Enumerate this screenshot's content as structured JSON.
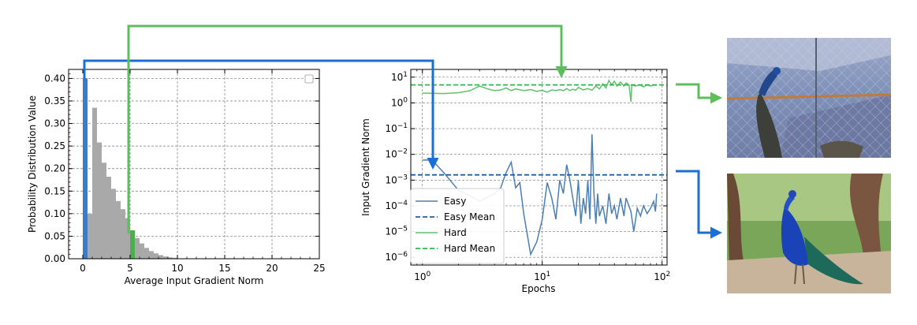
{
  "colors": {
    "easy": "#4a7fb5",
    "easy_mean": "#1f5fa8",
    "hard": "#5ec26a",
    "hard_mean": "#2eb84a",
    "hist_gray": "#a9a9a9",
    "hist_blue": "#3d7bc4",
    "hist_green": "#4cae4c",
    "arrow_blue": "#1a6fd6",
    "arrow_green": "#5cbf5c"
  },
  "chart_data": [
    {
      "type": "bar",
      "title": "",
      "xlabel": "Average Input Gradient Norm",
      "ylabel": "Probability Distribution Value",
      "xlim": [
        -1.5,
        25
      ],
      "ylim": [
        0,
        0.42
      ],
      "xticks": [
        "0",
        "5",
        "10",
        "15",
        "20",
        "25"
      ],
      "yticks": [
        "0.00",
        "0.05",
        "0.10",
        "0.15",
        "0.20",
        "0.25",
        "0.30",
        "0.35",
        "0.40"
      ],
      "grid": true,
      "bin_width": 0.5,
      "bins": [
        {
          "x": 0.0,
          "value": 0.4,
          "highlight": "easy"
        },
        {
          "x": 0.5,
          "value": 0.1
        },
        {
          "x": 1.0,
          "value": 0.335
        },
        {
          "x": 1.5,
          "value": 0.258
        },
        {
          "x": 2.0,
          "value": 0.213
        },
        {
          "x": 2.5,
          "value": 0.182
        },
        {
          "x": 3.0,
          "value": 0.155
        },
        {
          "x": 3.5,
          "value": 0.128
        },
        {
          "x": 4.0,
          "value": 0.11
        },
        {
          "x": 4.5,
          "value": 0.09
        },
        {
          "x": 5.0,
          "value": 0.063,
          "highlight": "hard"
        },
        {
          "x": 5.5,
          "value": 0.046
        },
        {
          "x": 6.0,
          "value": 0.034
        },
        {
          "x": 6.5,
          "value": 0.024
        },
        {
          "x": 7.0,
          "value": 0.017
        },
        {
          "x": 7.5,
          "value": 0.012
        },
        {
          "x": 8.0,
          "value": 0.008
        },
        {
          "x": 8.5,
          "value": 0.005
        },
        {
          "x": 9.0,
          "value": 0.003
        },
        {
          "x": 9.5,
          "value": 0.002
        }
      ]
    },
    {
      "type": "line",
      "title": "",
      "xlabel": "Epochs",
      "ylabel": "Input Gradient Norm",
      "xscale": "log",
      "yscale": "log",
      "xlim": [
        0.8,
        110
      ],
      "ylim": [
        5e-07,
        20
      ],
      "xticks": [
        {
          "v": 1,
          "base": "10",
          "exp": "0"
        },
        {
          "v": 10,
          "base": "10",
          "exp": "1"
        },
        {
          "v": 100,
          "base": "10",
          "exp": "2"
        }
      ],
      "yticks": [
        {
          "v": 1e-06,
          "base": "10",
          "exp": "−6"
        },
        {
          "v": 1e-05,
          "base": "10",
          "exp": "−5"
        },
        {
          "v": 0.0001,
          "base": "10",
          "exp": "−4"
        },
        {
          "v": 0.001,
          "base": "10",
          "exp": "−3"
        },
        {
          "v": 0.01,
          "base": "10",
          "exp": "−2"
        },
        {
          "v": 0.1,
          "base": "10",
          "exp": "−1"
        },
        {
          "v": 1,
          "base": "10",
          "exp": "0"
        },
        {
          "v": 10,
          "base": "10",
          "exp": "1"
        }
      ],
      "grid": true,
      "legend_position": "lower-left",
      "series": [
        {
          "name": "Easy",
          "style": "solid",
          "points": [
            [
              1,
              0.006
            ],
            [
              1.2,
              0.006
            ],
            [
              1.5,
              0.002
            ],
            [
              2,
              0.0004
            ],
            [
              2.5,
              0.00025
            ],
            [
              3,
              0.00015
            ],
            [
              4,
              0.0003
            ],
            [
              4.5,
              0.0005
            ],
            [
              5,
              0.002
            ],
            [
              5.5,
              0.005
            ],
            [
              6,
              0.0005
            ],
            [
              6.5,
              0.0008
            ],
            [
              7,
              5e-05
            ],
            [
              8,
              1.3e-06
            ],
            [
              9,
              4e-06
            ],
            [
              10,
              3e-05
            ],
            [
              11,
              0.0008
            ],
            [
              12,
              0.0002
            ],
            [
              13,
              3e-05
            ],
            [
              14,
              0.001
            ],
            [
              15,
              0.0003
            ],
            [
              16,
              0.004
            ],
            [
              17,
              0.001
            ],
            [
              18,
              0.0002
            ],
            [
              19,
              4e-05
            ],
            [
              20,
              0.001
            ],
            [
              21,
              2e-05
            ],
            [
              22,
              0.0002
            ],
            [
              23,
              5e-05
            ],
            [
              24,
              0.001
            ],
            [
              25,
              3e-05
            ],
            [
              26,
              0.06
            ],
            [
              27,
              0.0003
            ],
            [
              28,
              2e-05
            ],
            [
              29,
              0.0003
            ],
            [
              30,
              4e-05
            ],
            [
              32,
              0.0001
            ],
            [
              34,
              2e-05
            ],
            [
              36,
              0.0003
            ],
            [
              38,
              5e-05
            ],
            [
              40,
              0.0001
            ],
            [
              42,
              3e-05
            ],
            [
              45,
              0.0002
            ],
            [
              48,
              4e-05
            ],
            [
              50,
              0.0002
            ],
            [
              55,
              6e-05
            ],
            [
              58,
              1e-05
            ],
            [
              62,
              8e-05
            ],
            [
              66,
              4e-05
            ],
            [
              70,
              0.0001
            ],
            [
              75,
              5e-05
            ],
            [
              80,
              8e-05
            ],
            [
              85,
              0.00015
            ],
            [
              88,
              6e-05
            ],
            [
              90,
              0.0003
            ]
          ]
        },
        {
          "name": "Easy Mean",
          "style": "dashed",
          "value": 0.0016
        },
        {
          "name": "Hard",
          "style": "solid",
          "points": [
            [
              1,
              2.4
            ],
            [
              1.5,
              2.3
            ],
            [
              2,
              2.5
            ],
            [
              2.5,
              3
            ],
            [
              3,
              4.5
            ],
            [
              3.5,
              3.5
            ],
            [
              4,
              3
            ],
            [
              4.5,
              3.2
            ],
            [
              5,
              3.8
            ],
            [
              5.5,
              3
            ],
            [
              6,
              3.5
            ],
            [
              7,
              3
            ],
            [
              8,
              3.3
            ],
            [
              9,
              2.8
            ],
            [
              10,
              3.1
            ],
            [
              11,
              2.6
            ],
            [
              12,
              3.2
            ],
            [
              13,
              3
            ],
            [
              14,
              3.3
            ],
            [
              15,
              3
            ],
            [
              16,
              3.6
            ],
            [
              17,
              3
            ],
            [
              18,
              3.4
            ],
            [
              19,
              3.1
            ],
            [
              20,
              4
            ],
            [
              22,
              3.2
            ],
            [
              24,
              3.6
            ],
            [
              26,
              3.1
            ],
            [
              28,
              4.5
            ],
            [
              30,
              3.5
            ],
            [
              32,
              5.5
            ],
            [
              34,
              3.8
            ],
            [
              36,
              7.5
            ],
            [
              38,
              5
            ],
            [
              40,
              7
            ],
            [
              42,
              4.5
            ],
            [
              45,
              6.5
            ],
            [
              48,
              4.5
            ],
            [
              50,
              6
            ],
            [
              53,
              5
            ],
            [
              55,
              1.1
            ],
            [
              56,
              5
            ],
            [
              60,
              4.5
            ],
            [
              65,
              5
            ],
            [
              70,
              4.2
            ],
            [
              75,
              5
            ],
            [
              80,
              4.5
            ],
            [
              85,
              5
            ],
            [
              90,
              4.8
            ]
          ]
        },
        {
          "name": "Hard Mean",
          "style": "dashed",
          "value": 5.0
        }
      ]
    }
  ]
}
